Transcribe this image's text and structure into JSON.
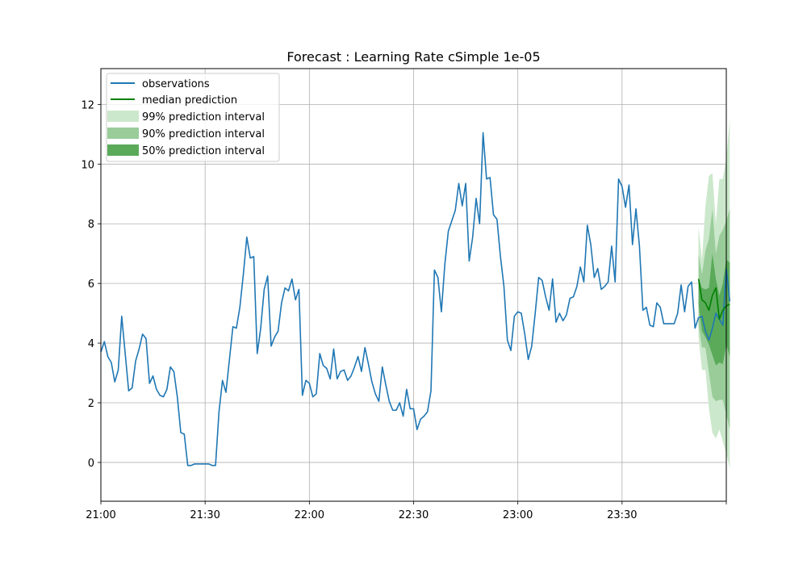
{
  "chart_data": {
    "type": "line",
    "title": "Forecast : Learning Rate cSimple 1e-05",
    "xlabel": "",
    "ylabel": "",
    "grid": true,
    "legend_position": "top-left",
    "xlim": [
      "21:00",
      "00:00"
    ],
    "ylim": [
      -1.3,
      13.2
    ],
    "x_ticks": [
      "21:00",
      "21:30",
      "22:00",
      "22:30",
      "23:00",
      "23:30",
      ""
    ],
    "y_ticks": [
      0,
      2,
      4,
      6,
      8,
      10,
      12
    ],
    "colors": {
      "observations": "#1f77b4",
      "median": "#008000",
      "band99": "#cce8cc",
      "band90": "#99cc99",
      "band50": "#5aaa5a"
    },
    "legend": [
      "observations",
      "median prediction",
      "99% prediction interval",
      "90% prediction interval",
      "50% prediction interval"
    ],
    "series": [
      {
        "name": "observations",
        "interval_minutes": 1,
        "start": "21:00",
        "values": [
          3.7,
          4.05,
          3.55,
          3.35,
          2.7,
          3.1,
          4.9,
          3.65,
          2.4,
          2.5,
          3.4,
          3.8,
          4.3,
          4.15,
          2.65,
          2.9,
          2.45,
          2.25,
          2.2,
          2.45,
          3.2,
          3.05,
          2.2,
          1.0,
          0.95,
          -0.1,
          -0.1,
          -0.05,
          -0.05,
          -0.05,
          -0.05,
          -0.05,
          -0.1,
          -0.1,
          1.7,
          2.75,
          2.35,
          3.45,
          4.55,
          4.5,
          5.2,
          6.3,
          7.55,
          6.85,
          6.9,
          3.65,
          4.5,
          5.8,
          6.25,
          3.9,
          4.2,
          4.4,
          5.35,
          5.85,
          5.75,
          6.15,
          5.45,
          5.8,
          2.25,
          2.75,
          2.65,
          2.2,
          2.3,
          3.65,
          3.25,
          3.15,
          2.8,
          3.8,
          2.8,
          3.05,
          3.1,
          2.75,
          2.9,
          3.2,
          3.55,
          3.05,
          3.85,
          3.3,
          2.7,
          2.3,
          2.05,
          3.2,
          2.6,
          2.05,
          1.75,
          1.75,
          2.0,
          1.55,
          2.45,
          1.8,
          1.8,
          1.1,
          1.45,
          1.55,
          1.7,
          2.4,
          6.45,
          6.2,
          5.05,
          6.65,
          7.75,
          8.1,
          8.45,
          9.35,
          8.6,
          9.35,
          6.75,
          7.55,
          8.85,
          8.0,
          11.05,
          9.5,
          9.55,
          8.3,
          8.15,
          6.9,
          5.9,
          4.1,
          3.75,
          4.9,
          5.05,
          5.0,
          4.3,
          3.45,
          3.9,
          5.0,
          6.2,
          6.1,
          5.55,
          5.1,
          6.15,
          4.7,
          5.0,
          4.75,
          4.95,
          5.5,
          5.55,
          5.9,
          6.55,
          6.05,
          7.95,
          7.3,
          6.2,
          6.5,
          5.8,
          5.9,
          6.05,
          7.25,
          6.05,
          9.5,
          9.25,
          8.55,
          9.3,
          7.3,
          8.5,
          7.25,
          5.1,
          5.2,
          4.6,
          4.55,
          5.35,
          5.2,
          4.65,
          4.65,
          4.65,
          4.65,
          5.0,
          5.95,
          5.05,
          5.9,
          6.05,
          4.5,
          4.85,
          4.9,
          4.4,
          4.1,
          4.5,
          5.0,
          4.8,
          4.6,
          6.5,
          5.4
        ]
      },
      {
        "name": "median prediction",
        "interval_minutes": 1,
        "start": "23:52",
        "values": [
          6.15,
          5.45,
          5.35,
          5.1,
          5.6,
          5.85,
          4.8,
          5.1,
          5.25,
          5.3
        ]
      }
    ],
    "intervals": [
      {
        "name": "99% prediction interval",
        "start": "23:52",
        "interval_minutes": 1,
        "upper": [
          7.9,
          6.8,
          8.6,
          9.6,
          9.7,
          8.0,
          9.5,
          9.5,
          10.2,
          11.5
        ],
        "lower": [
          4.2,
          3.1,
          3.1,
          1.8,
          1.0,
          0.8,
          1.1,
          0.7,
          0.3,
          -0.2
        ]
      },
      {
        "name": "90% prediction interval",
        "start": "23:52",
        "interval_minutes": 1,
        "upper": [
          7.0,
          6.3,
          7.1,
          7.5,
          8.5,
          7.0,
          7.6,
          7.8,
          8.1,
          8.5
        ],
        "lower": [
          4.6,
          3.85,
          3.85,
          3.0,
          2.2,
          2.05,
          2.1,
          2.1,
          1.6,
          1.1
        ]
      },
      {
        "name": "50% prediction interval",
        "start": "23:52",
        "interval_minutes": 1,
        "upper": [
          6.2,
          5.85,
          5.8,
          5.85,
          7.0,
          6.15,
          5.6,
          6.0,
          6.8,
          6.7
        ],
        "lower": [
          5.3,
          4.4,
          4.2,
          3.95,
          3.6,
          3.25,
          3.35,
          3.3,
          3.95,
          3.55
        ]
      }
    ]
  }
}
